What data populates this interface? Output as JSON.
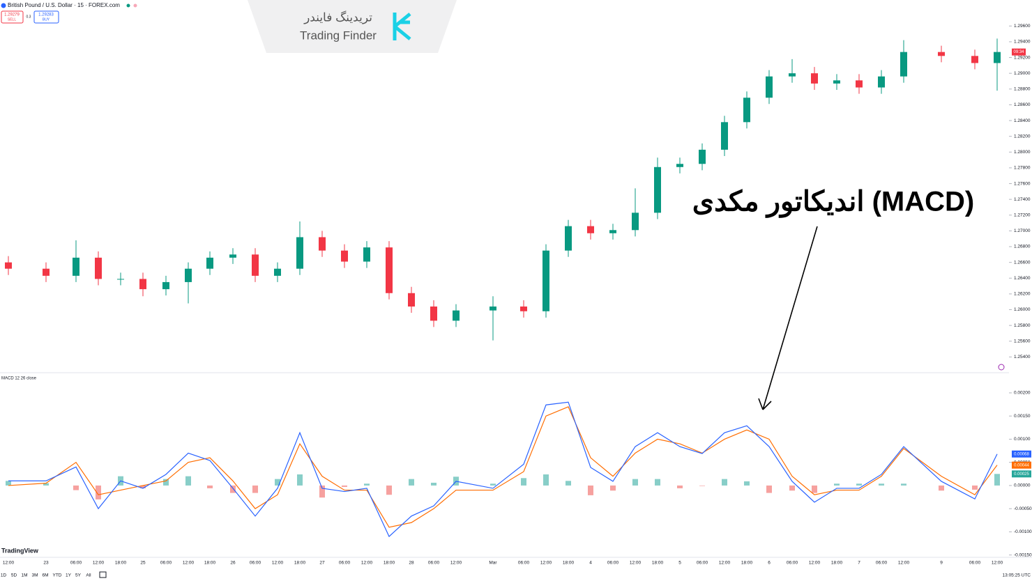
{
  "header": {
    "symbol": "British Pound / U.S. Dollar · 15 · FOREX.com",
    "sell_price": 1.29279,
    "sell": "SELL",
    "spread": 0.3,
    "buy_price": 1.29283,
    "buy": "BUY"
  },
  "logo": {
    "fa": "تریدینگ فایندر",
    "en": "Trading Finder"
  },
  "annotation": "اندیکاتور مکدی (MACD)",
  "chart_data": [
    {
      "type": "candlestick",
      "categories": [
        "12:00",
        "23",
        "06:00",
        "12:00",
        "18:00",
        "25",
        "06:00",
        "12:00",
        "18:00",
        "26",
        "06:00",
        "12:00",
        "18:00",
        "27",
        "06:00",
        "12:00",
        "18:00",
        "28",
        "06:00",
        "12:00",
        "Mar",
        "06:00",
        "12:00",
        "18:00",
        "4",
        "06:00",
        "12:00",
        "18:00",
        "5",
        "06:00",
        "12:00",
        "18:00",
        "6",
        "06:00",
        "12:00",
        "18:00",
        "7",
        "06:00",
        "12:00",
        "9",
        "06:00",
        "12:00"
      ],
      "open": [
        1.266,
        1.2652,
        1.2643,
        1.2666,
        1.2639,
        1.2639,
        1.2626,
        1.2635,
        1.2652,
        1.2666,
        1.267,
        1.2643,
        1.2652,
        1.2692,
        1.2675,
        1.2661,
        1.2679,
        1.2621,
        1.2604,
        1.2586,
        1.2599,
        1.2604,
        1.2598,
        1.2675,
        1.2706,
        1.2697,
        1.2701,
        1.2723,
        1.2781,
        1.2785,
        1.2803,
        1.2838,
        1.2869,
        1.2896,
        1.29,
        1.2887,
        1.2891,
        1.2882,
        1.2896,
        1.2927,
        1.2922,
        1.2913
      ],
      "high": [
        1.2668,
        1.266,
        1.2688,
        1.2674,
        1.2647,
        1.2647,
        1.2643,
        1.266,
        1.2674,
        1.2678,
        1.2678,
        1.266,
        1.2712,
        1.27,
        1.2683,
        1.2687,
        1.2687,
        1.2629,
        1.2612,
        1.2607,
        1.2617,
        1.2612,
        1.2683,
        1.2714,
        1.2714,
        1.2709,
        1.2754,
        1.2793,
        1.2793,
        1.2811,
        1.2846,
        1.2877,
        1.2904,
        1.2918,
        1.2908,
        1.2899,
        1.2899,
        1.2904,
        1.2942,
        1.2935,
        1.293,
        1.2944
      ],
      "low": [
        1.2644,
        1.2635,
        1.2635,
        1.2631,
        1.2631,
        1.2617,
        1.2618,
        1.2608,
        1.2644,
        1.2658,
        1.2635,
        1.2635,
        1.2644,
        1.2667,
        1.2653,
        1.2653,
        1.2613,
        1.2596,
        1.2578,
        1.2578,
        1.2561,
        1.259,
        1.259,
        1.2667,
        1.2689,
        1.2689,
        1.2693,
        1.2715,
        1.2773,
        1.2777,
        1.2795,
        1.283,
        1.2861,
        1.2888,
        1.2879,
        1.2879,
        1.2874,
        1.2874,
        1.2888,
        1.2914,
        1.2905,
        1.2878
      ],
      "close": [
        1.2652,
        1.2643,
        1.2666,
        1.2639,
        1.2639,
        1.2626,
        1.2635,
        1.2652,
        1.2666,
        1.267,
        1.2643,
        1.2652,
        1.2692,
        1.2675,
        1.2661,
        1.2679,
        1.2621,
        1.2604,
        1.2586,
        1.2599,
        1.2604,
        1.2598,
        1.2675,
        1.2706,
        1.2697,
        1.2701,
        1.2723,
        1.2781,
        1.2785,
        1.2803,
        1.2838,
        1.2869,
        1.2896,
        1.29,
        1.2887,
        1.2891,
        1.2882,
        1.2896,
        1.2927,
        1.2922,
        1.2913,
        1.2927
      ],
      "up_color": "#089981",
      "down_color": "#f23645",
      "ylim": [
        1.252,
        1.2993
      ],
      "yticks": [
        {
          "value": 1.254,
          "label": "1.25400"
        },
        {
          "value": 1.256,
          "label": "1.25600"
        },
        {
          "value": 1.258,
          "label": "1.25800"
        },
        {
          "value": 1.26,
          "label": "1.26000"
        },
        {
          "value": 1.262,
          "label": "1.26200"
        },
        {
          "value": 1.264,
          "label": "1.26400"
        },
        {
          "value": 1.266,
          "label": "1.26600"
        },
        {
          "value": 1.268,
          "label": "1.26800"
        },
        {
          "value": 1.27,
          "label": "1.27000"
        },
        {
          "value": 1.272,
          "label": "1.27200"
        },
        {
          "value": 1.274,
          "label": "1.27400"
        },
        {
          "value": 1.276,
          "label": "1.27600"
        },
        {
          "value": 1.278,
          "label": "1.27800"
        },
        {
          "value": 1.28,
          "label": "1.28000"
        },
        {
          "value": 1.282,
          "label": "1.28200"
        },
        {
          "value": 1.284,
          "label": "1.28400"
        },
        {
          "value": 1.286,
          "label": "1.28600"
        },
        {
          "value": 1.288,
          "label": "1.28800"
        },
        {
          "value": 1.29,
          "label": "1.29000"
        },
        {
          "value": 1.292,
          "label": "1.29200"
        },
        {
          "value": 1.294,
          "label": "1.29400"
        },
        {
          "value": 1.296,
          "label": "1.29600"
        }
      ],
      "countdown": "09:34"
    },
    {
      "type": "macd",
      "title": "MACD 12 26 close",
      "macd": [
        0.0001,
        0.0001,
        0.0004,
        -0.0005,
        0.0001,
        -6e-05,
        0.00024,
        0.0007,
        0.00054,
        -6e-05,
        -0.00066,
        -6e-05,
        0.00114,
        -6e-05,
        -0.00013,
        -6e-05,
        -0.0011,
        -0.00066,
        -0.00044,
        9e-05,
        -6e-05,
        0.00046,
        0.00174,
        0.0018,
        0.00039,
        9e-05,
        0.00084,
        0.00114,
        0.00084,
        0.00069,
        0.00114,
        0.00129,
        0.00084,
        9e-05,
        -0.00036,
        -6e-05,
        -6e-05,
        0.00024,
        0.00084,
        9e-05,
        -0.00029,
        0.00068
      ],
      "signal": [
        0,
        5e-05,
        0.0005,
        -0.0002,
        -0.0001,
        0,
        0.0001,
        0.0005,
        0.0006,
        0.0001,
        -0.0005,
        -0.0002,
        0.0009,
        0.0002,
        -0.0001,
        -0.0001,
        -0.0009,
        -0.0008,
        -0.0005,
        -0.0001,
        -0.0001,
        0.0003,
        0.0015,
        0.0017,
        0.0006,
        0.0002,
        0.0007,
        0.001,
        0.0009,
        0.0007,
        0.001,
        0.0012,
        0.001,
        0.0002,
        -0.0002,
        -0.0001,
        -0.0001,
        0.0002,
        0.0008,
        0.0002,
        -0.0002,
        0.00044
      ],
      "histogram": [
        0.0001,
        5e-05,
        -0.0001,
        -0.0003,
        0.0002,
        -6e-05,
        0.00014,
        0.0002,
        -6e-05,
        -0.00016,
        -0.00016,
        0.00014,
        0.00024,
        -0.00026,
        -3e-05,
        4e-05,
        -0.0002,
        0.00014,
        6e-05,
        0.00019,
        4e-05,
        0.00016,
        0.00024,
        0.0001,
        -0.00021,
        -0.00011,
        0.00014,
        0.00014,
        -6e-05,
        -1e-05,
        0.00014,
        9e-05,
        -0.00016,
        -0.00011,
        -0.00016,
        4e-05,
        4e-05,
        4e-05,
        4e-05,
        -0.00011,
        -9e-05,
        0.00025
      ],
      "macd_color": "#2962ff",
      "signal_color": "#ff6d00",
      "hist_up_color": "#26a69a",
      "hist_down_color": "#ef5350",
      "ylim": [
        -0.00155,
        0.00236
      ],
      "yticks": [
        {
          "value": -0.0015,
          "label": "-0.00150"
        },
        {
          "value": -0.001,
          "label": "-0.00100"
        },
        {
          "value": -0.0005,
          "label": "-0.00050"
        },
        {
          "value": 0,
          "label": "0.00000"
        },
        {
          "value": 0.0005,
          "label": "0.00050"
        },
        {
          "value": 0.001,
          "label": "0.00100"
        },
        {
          "value": 0.0015,
          "label": "0.00150"
        },
        {
          "value": 0.002,
          "label": "0.00200"
        }
      ]
    }
  ],
  "footer": {
    "brand": "TradingView",
    "ranges": [
      "1D",
      "5D",
      "1M",
      "3M",
      "6M",
      "YTD",
      "1Y",
      "5Y",
      "All"
    ],
    "clock": "13:05:25 UTC"
  }
}
